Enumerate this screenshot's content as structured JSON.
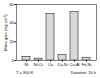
{
  "chart_data": {
    "type": "bar",
    "ylabel": "Mass gain (mg cm⁻²)",
    "categories": [
      "Ni",
      "Ni-Cr",
      "Cu",
      "Cu-Ni",
      "Cu-Al",
      "Fe-Ni"
    ],
    "values": [
      4,
      2,
      50,
      6,
      52,
      3
    ],
    "color": "#d9d9d9",
    "ylim": [
      0,
      60
    ],
    "yticks": [
      0,
      20,
      40,
      60
    ],
    "grid": false,
    "annotations": [
      "T = 900 K",
      "Duration: 10 h"
    ]
  }
}
